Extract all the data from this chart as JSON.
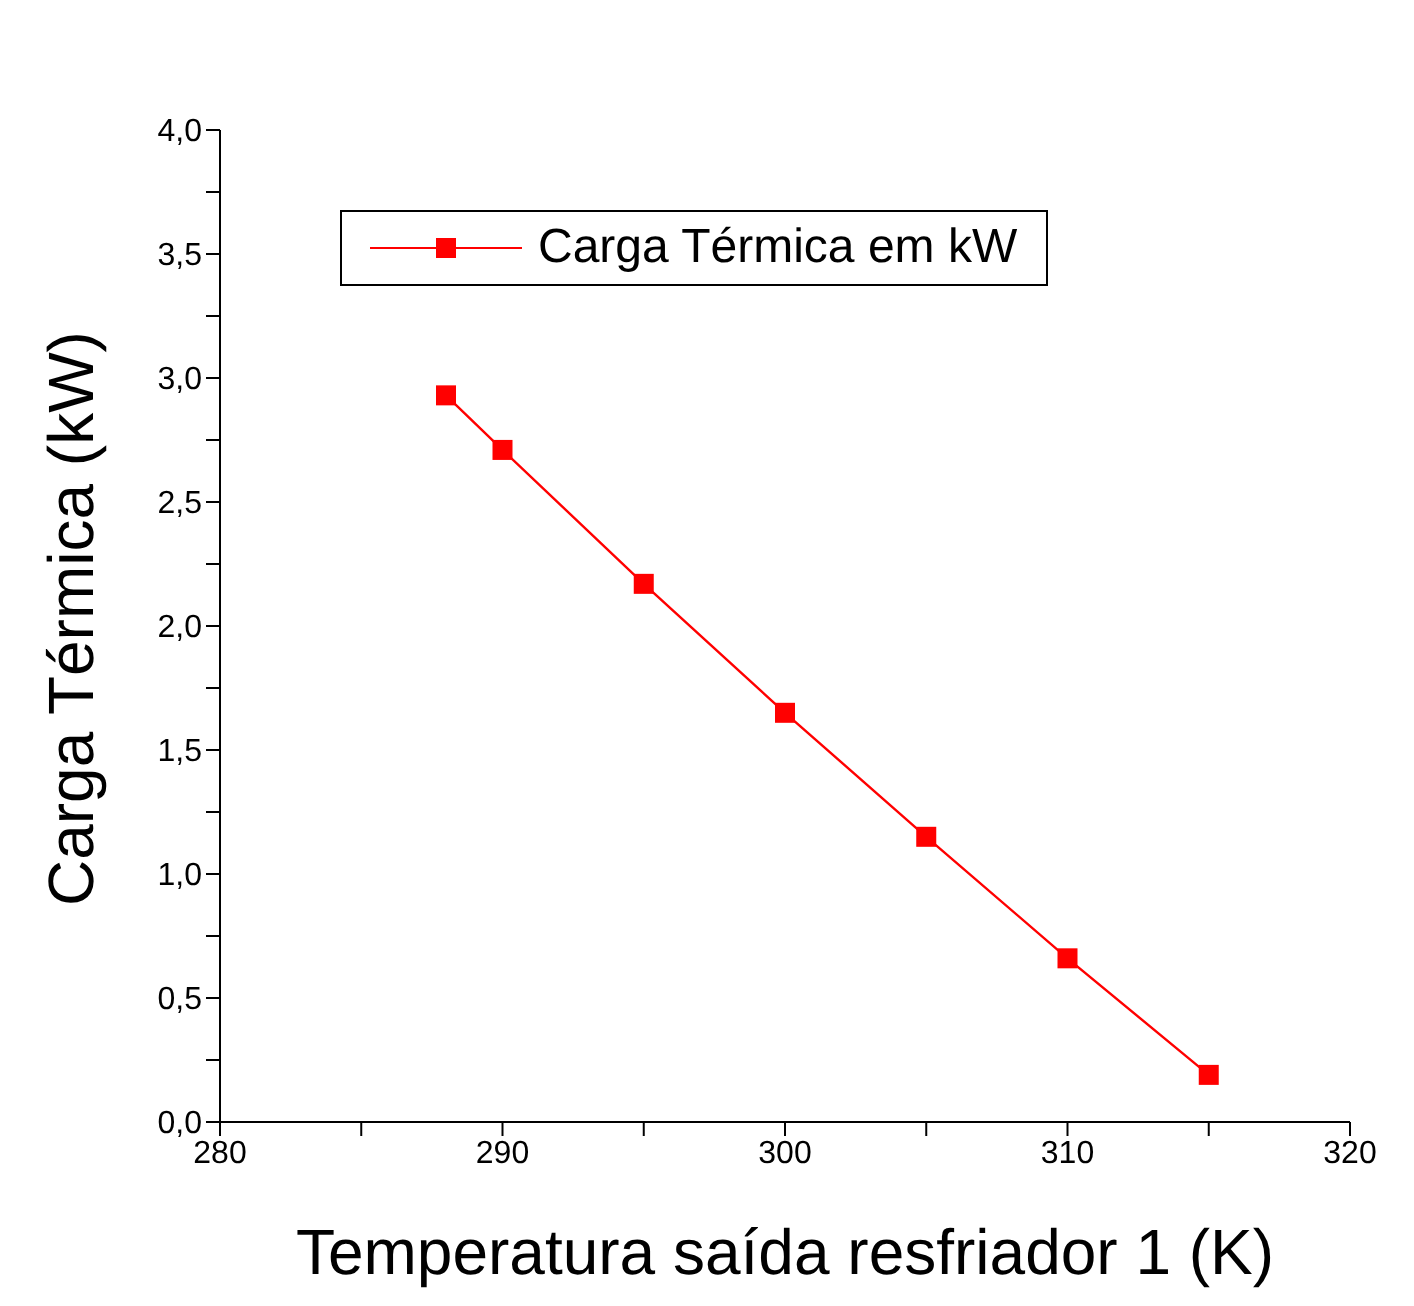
{
  "chart_data": {
    "type": "line",
    "xlabel": "Temperatura saída resfriador 1 (K)",
    "ylabel": "Carga Térmica (kW)",
    "x": [
      288,
      290,
      295,
      300,
      305,
      310,
      315
    ],
    "series": [
      {
        "name": "Carga Térmica em kW",
        "color": "#ff0000",
        "values": [
          2.93,
          2.71,
          2.17,
          1.65,
          1.15,
          0.66,
          0.19
        ]
      }
    ],
    "xlim": [
      280,
      320
    ],
    "xticks": [
      280,
      {
        "value": 285,
        "label": null
      },
      290,
      {
        "value": 295,
        "label": null
      },
      300,
      {
        "value": 305,
        "label": null
      },
      310,
      {
        "value": 315,
        "label": null
      },
      320
    ],
    "ylim": [
      0,
      4
    ],
    "yticks": [
      {
        "value": 0,
        "label": "0,0"
      },
      {
        "value": 0.25,
        "label": null
      },
      {
        "value": 0.5,
        "label": "0,5"
      },
      {
        "value": 0.75,
        "label": null
      },
      {
        "value": 1,
        "label": "1,0"
      },
      {
        "value": 1.25,
        "label": null
      },
      {
        "value": 1.5,
        "label": "1,5"
      },
      {
        "value": 1.75,
        "label": null
      },
      {
        "value": 2,
        "label": "2,0"
      },
      {
        "value": 2.25,
        "label": null
      },
      {
        "value": 2.5,
        "label": "2,5"
      },
      {
        "value": 2.75,
        "label": null
      },
      {
        "value": 3,
        "label": "3,0"
      },
      {
        "value": 3.25,
        "label": null
      },
      {
        "value": 3.5,
        "label": "3,5"
      },
      {
        "value": 3.75,
        "label": null
      },
      {
        "value": 4,
        "label": "4,0"
      }
    ],
    "grid": false,
    "legend": "top",
    "marker": "square",
    "line_style": "solid"
  }
}
